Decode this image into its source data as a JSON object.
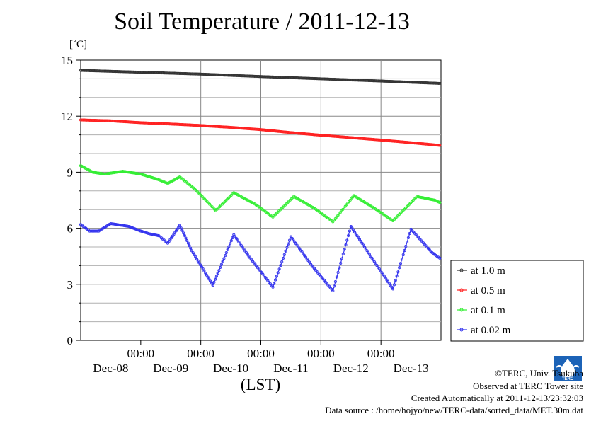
{
  "title": "Soil Temperature / 2011-12-13",
  "unit_label": "[˚C]",
  "xlabel": "(LST)",
  "footer": {
    "copyright": "©TERC, Univ. Tsukuba",
    "observed": "Observed at TERC Tower site",
    "created": "Created Automatically at 2011-12-13/23:32:03",
    "source": "Data source : /home/hojyo/new/TERC-data/sorted_data/MET.30m.dat"
  },
  "logo": {
    "icon": "terc-logo-icon",
    "text": "TERC",
    "color": "#1c63b7"
  },
  "chart_data": {
    "type": "line",
    "title": "Soil Temperature / 2011-12-13",
    "xlabel": "(LST)",
    "ylabel": "[˚C]",
    "ylim": [
      0,
      15
    ],
    "yticks": [
      0,
      3,
      6,
      9,
      12,
      15
    ],
    "xlim_days": [
      -1.0,
      5.0
    ],
    "x_tick_time_label": "00:00",
    "x_day_labels": [
      "Dec-08",
      "Dec-09",
      "Dec-10",
      "Dec-11",
      "Dec-12",
      "Dec-13"
    ],
    "grid": true,
    "legend_position": "right",
    "series": [
      {
        "name": "at 1.0 m",
        "color": "#333333",
        "x": [
          -1.0,
          0.0,
          1.0,
          2.0,
          3.0,
          4.0,
          5.0
        ],
        "y": [
          14.45,
          14.35,
          14.25,
          14.12,
          14.0,
          13.88,
          13.75
        ]
      },
      {
        "name": "at 0.5 m",
        "color": "#ff2020",
        "x": [
          -1.0,
          -0.5,
          0.0,
          0.5,
          1.0,
          1.5,
          2.0,
          2.5,
          3.0,
          3.5,
          4.0,
          4.5,
          5.0
        ],
        "y": [
          11.8,
          11.75,
          11.65,
          11.58,
          11.5,
          11.4,
          11.28,
          11.12,
          10.98,
          10.85,
          10.72,
          10.58,
          10.43
        ]
      },
      {
        "name": "at 0.1 m",
        "color": "#33ee33",
        "x": [
          -1.0,
          -0.8,
          -0.6,
          -0.3,
          0.0,
          0.3,
          0.45,
          0.65,
          0.9,
          1.25,
          1.55,
          1.9,
          2.2,
          2.55,
          2.9,
          3.2,
          3.55,
          3.9,
          4.2,
          4.6,
          4.9,
          5.0
        ],
        "y": [
          9.35,
          9.0,
          8.9,
          9.05,
          8.9,
          8.6,
          8.4,
          8.75,
          8.1,
          6.95,
          7.9,
          7.3,
          6.6,
          7.7,
          7.05,
          6.35,
          7.75,
          7.05,
          6.4,
          7.7,
          7.5,
          7.35
        ]
      },
      {
        "name": "at 0.02 m",
        "color": "#3333ee",
        "x": [
          -1.0,
          -0.85,
          -0.7,
          -0.5,
          -0.2,
          0.0,
          0.15,
          0.3,
          0.45,
          0.65,
          0.85,
          1.2,
          1.55,
          1.8,
          2.2,
          2.5,
          2.85,
          3.2,
          3.5,
          3.85,
          4.2,
          4.5,
          4.85,
          5.0
        ],
        "y": [
          6.2,
          5.85,
          5.85,
          6.25,
          6.1,
          5.85,
          5.7,
          5.6,
          5.2,
          6.15,
          4.8,
          2.95,
          5.65,
          4.5,
          2.85,
          5.55,
          4.0,
          2.65,
          6.1,
          4.4,
          2.75,
          5.95,
          4.7,
          4.35
        ]
      }
    ]
  }
}
